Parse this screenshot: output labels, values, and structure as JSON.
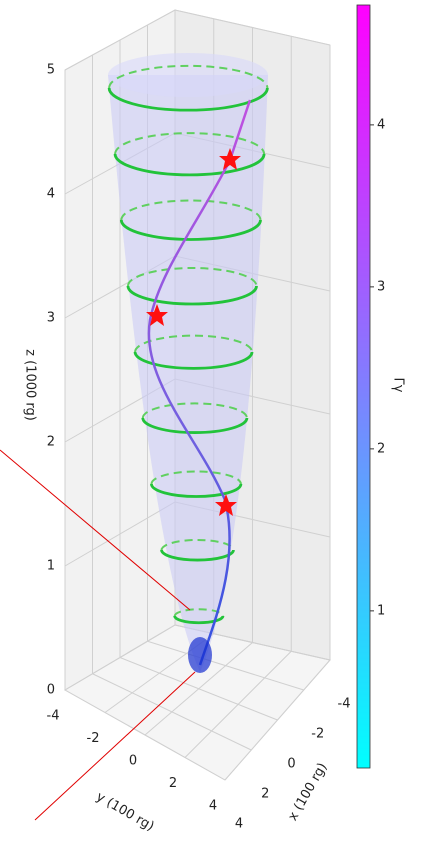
{
  "chart_data": {
    "type": "surface3d",
    "zlabel": "z (1000 rg)",
    "ylabel": "y (100 rg)",
    "xlabel": "x (100 rg)",
    "zlim": [
      0,
      5
    ],
    "zticks": [
      0,
      1,
      2,
      3,
      4,
      5
    ],
    "ylim": [
      -4,
      4
    ],
    "yticks": [
      -4,
      -2,
      0,
      2,
      4
    ],
    "xlim": [
      4,
      -4
    ],
    "xticks": [
      -4,
      -2,
      0,
      2,
      4
    ],
    "colorbar": {
      "label": "Γγ",
      "clim": [
        0.03,
        4.74
      ],
      "ticks": [
        1,
        2,
        3,
        4
      ],
      "colors": [
        "#00ffff",
        "#ff00ff"
      ]
    }
  }
}
